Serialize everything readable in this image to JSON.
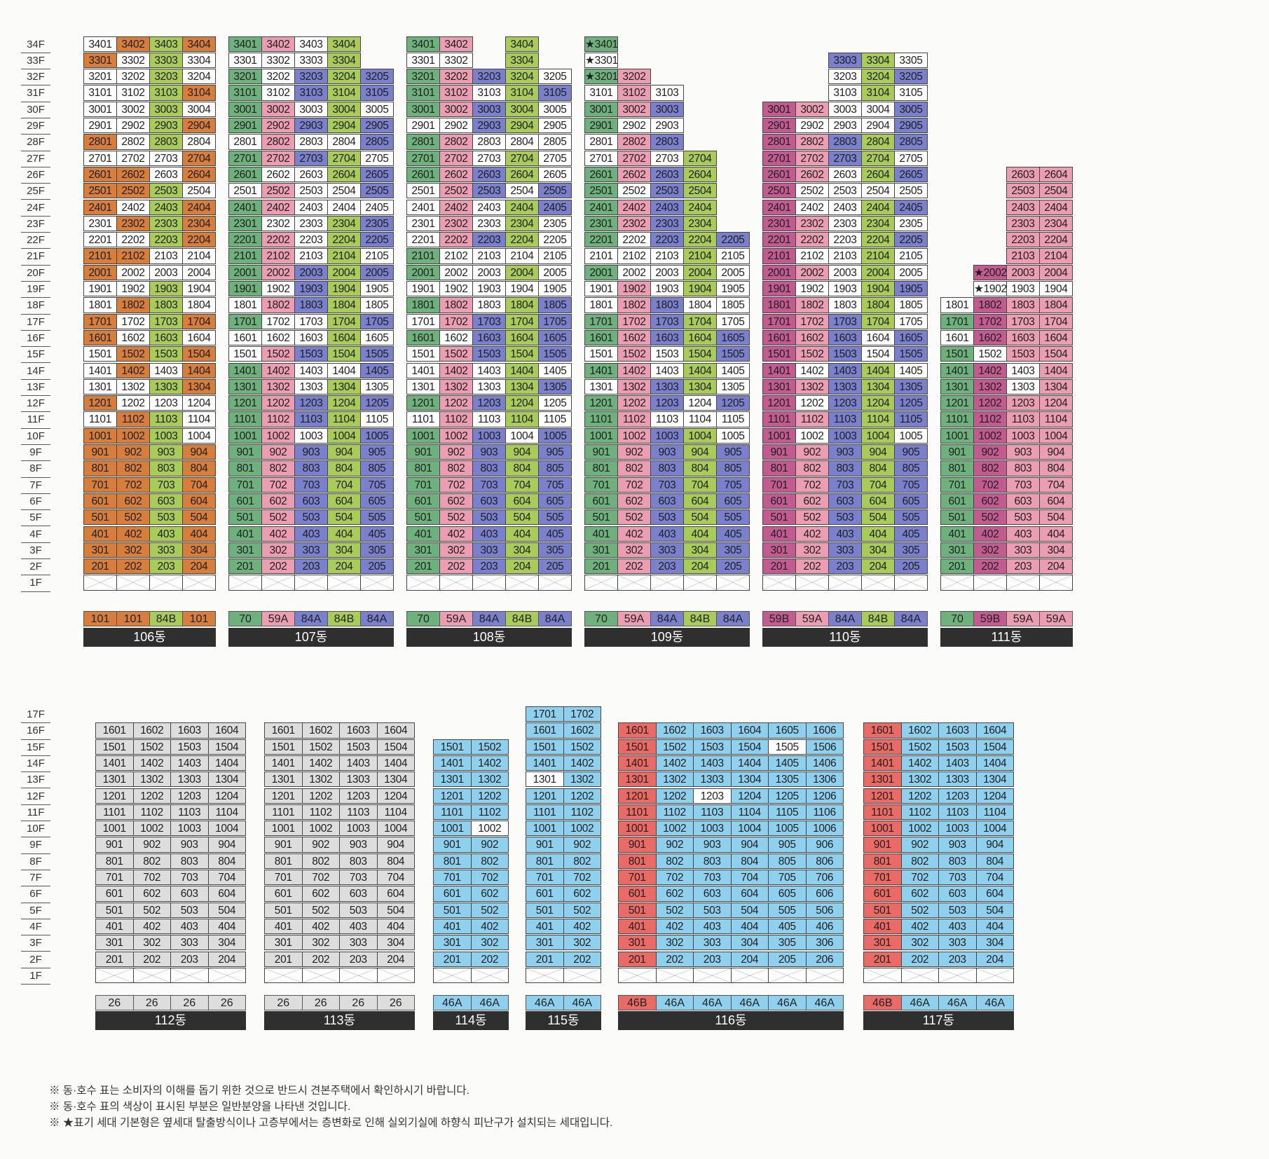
{
  "colors": {
    "orange": "#d77e3c",
    "green": "#6fb17d",
    "pink": "#eb9db1",
    "blue": "#7a80cc",
    "lime": "#a9cb5a",
    "magenta": "#c25c90",
    "white": "#ffffff",
    "gray": "#dddddd",
    "lightblue": "#8fd0ef",
    "red": "#ea6a66"
  },
  "top_floors": [
    "34F",
    "33F",
    "32F",
    "31F",
    "30F",
    "29F",
    "28F",
    "27F",
    "26F",
    "25F",
    "24F",
    "23F",
    "22F",
    "21F",
    "20F",
    "19F",
    "18F",
    "17F",
    "16F",
    "15F",
    "14F",
    "13F",
    "12F",
    "11F",
    "10F",
    "9F",
    "8F",
    "7F",
    "6F",
    "5F",
    "4F",
    "3F",
    "2F",
    "1F"
  ],
  "bottom_floors": [
    "17F",
    "16F",
    "15F",
    "14F",
    "13F",
    "12F",
    "11F",
    "10F",
    "9F",
    "8F",
    "7F",
    "6F",
    "5F",
    "4F",
    "3F",
    "2F",
    "1F"
  ],
  "top_buildings": [
    {
      "name": "106동",
      "types": [
        "101",
        "101",
        "84B",
        "101"
      ],
      "type_colors": [
        "O",
        "O",
        "L",
        "O"
      ],
      "rows": {
        "34": "WOLO",
        "33": "OWLW",
        "32": "WWLW",
        "31": "WWLO",
        "30": "WWLW",
        "29": "WWLO",
        "28": "OWLW",
        "27": "WWWO",
        "26": "OOWO",
        "25": "OOLW",
        "24": "OWLO",
        "23": "WOLO",
        "22": "WWLO",
        "21": "OOWW",
        "20": "OWWW",
        "19": "WWLW",
        "18": "WOLW",
        "17": "OWLO",
        "16": "OWLW",
        "15": "WOLO",
        "14": "WOWO",
        "13": "WWLO",
        "12": "OWWW",
        "11": "WOLW",
        "10": "OOLW",
        "9": "OOLO",
        "8": "OOLO",
        "7": "OOLO",
        "6": "OOLO",
        "5": "OOLO",
        "4": "OOLO",
        "3": "OOLO",
        "2": "OOLO"
      }
    },
    {
      "name": "107동",
      "types": [
        "70",
        "59A",
        "84A",
        "84B",
        "84A"
      ],
      "type_colors": [
        "G",
        "P",
        "B",
        "L",
        "B"
      ],
      "rows": {
        "34": "GPWL",
        "33": "WWWL",
        "32": "GWBLB",
        "31": "GWBLB",
        "30": "GPWLW",
        "29": "GPBLB",
        "28": "WPWWB",
        "27": "GPBLW",
        "26": "GWWLB",
        "25": "WPWWB",
        "24": "GPWWW",
        "23": "GWWLB",
        "22": "GPWLB",
        "21": "GPWLW",
        "20": "GPBLB",
        "19": "GWBLW",
        "18": "WPBLW",
        "17": "GWWLB",
        "16": "WWWLW",
        "15": "WPBLB",
        "14": "GPWWB",
        "13": "GPWLW",
        "12": "GPBLB",
        "11": "GPBLW",
        "10": "GPWLB",
        "9": "GPBLB",
        "8": "GPBLB",
        "7": "GPBLB",
        "6": "GPBLB",
        "5": "GPBLB",
        "4": "GPBLB",
        "3": "GPBLB",
        "2": "GPBLB"
      }
    },
    {
      "name": "108동",
      "types": [
        "70",
        "59A",
        "84A",
        "84B",
        "84A"
      ],
      "type_colors": [
        "G",
        "P",
        "B",
        "L",
        "B"
      ],
      "rows": {
        "34": "GP-L",
        "33": "WW-L",
        "32": "GPBLW",
        "31": "GPWLB",
        "30": "GPBLW",
        "29": "WWBLW",
        "28": "GPWWW",
        "27": "GPWLW",
        "26": "GPBLW",
        "25": "WPBWB",
        "24": "WPWLB",
        "23": "WPWLW",
        "22": "WPBLW",
        "21": "GWWWW",
        "20": "GWWLW",
        "19": "WWWWW",
        "18": "GPWLB",
        "17": "WPBLB",
        "16": "GWBLB",
        "15": "WPBLB",
        "14": "WPWLW",
        "13": "WPWLB",
        "12": "GPBLW",
        "11": "WPWLW",
        "10": "GPBWB",
        "9": "GPBLB",
        "8": "GPBLB",
        "7": "GPBLB",
        "6": "GPBLB",
        "5": "GPBLB",
        "4": "GPBLB",
        "3": "GPBLB",
        "2": "GPBLB"
      }
    },
    {
      "name": "109동",
      "types": [
        "70",
        "59A",
        "84A",
        "84B",
        "84A"
      ],
      "type_colors": [
        "G",
        "P",
        "B",
        "L",
        "B"
      ],
      "rows": {
        "34": "G",
        "33": "W",
        "32": "GP",
        "31": "WPW",
        "30": "GPB",
        "29": "GWW",
        "28": "WPB",
        "27": "WPWL",
        "26": "GPBL",
        "25": "GWBL",
        "24": "GPBL",
        "23": "GPBL",
        "22": "GWBLB",
        "21": "WWWLW",
        "20": "GWWLW",
        "19": "WPWLW",
        "18": "WPBWW",
        "17": "GPBLW",
        "16": "GPBLB",
        "15": "WPWLB",
        "14": "GPWLW",
        "13": "WPBLW",
        "12": "GPBWB",
        "11": "GPWWW",
        "10": "GPBLW",
        "9": "GPBLB",
        "8": "GPBLB",
        "7": "GPBLB",
        "6": "GPBLB",
        "5": "GPBLB",
        "4": "GPBLB",
        "3": "GPBLB",
        "2": "GPBLB"
      }
    },
    {
      "name": "110동",
      "types": [
        "59B",
        "59A",
        "84A",
        "84B",
        "84A"
      ],
      "type_colors": [
        "M",
        "P",
        "B",
        "L",
        "B"
      ],
      "rows": {
        "33": "--BLW",
        "32": "--WLB",
        "31": "--WLW",
        "30": "MPWWB",
        "29": "MWWWB",
        "28": "MPBLB",
        "27": "MPBLW",
        "26": "MPWLB",
        "25": "MWWWW",
        "24": "MWWLB",
        "23": "MPWLW",
        "22": "MPWLB",
        "21": "MWWLW",
        "20": "MPWLW",
        "19": "MWWLB",
        "18": "MPWLW",
        "17": "MPBLW",
        "16": "MPBWB",
        "15": "MPBWB",
        "14": "MWBLW",
        "13": "MPBLB",
        "12": "MWBLB",
        "11": "MPBLB",
        "10": "MWBLW",
        "9": "MPBLB",
        "8": "MPBLB",
        "7": "MPBLB",
        "6": "MPBLB",
        "5": "MPBLB",
        "4": "MPBLB",
        "3": "MPBLB",
        "2": "MPBLB"
      }
    },
    {
      "name": "111동",
      "types": [
        "70",
        "59B",
        "59A",
        "59A"
      ],
      "type_colors": [
        "G",
        "M",
        "P",
        "P"
      ],
      "rows": {
        "26": "--PP",
        "25": "--PP",
        "24": "--PP",
        "23": "--PP",
        "22": "--PP",
        "21": "--PP",
        "20": "-MPP",
        "19": "-WWW",
        "18": "WMPP",
        "17": "GMPP",
        "16": "WMPP",
        "15": "GWPP",
        "14": "GMWP",
        "13": "GMWP",
        "12": "GMPP",
        "11": "GMPP",
        "10": "GMPP",
        "9": "GMPP",
        "8": "GMPP",
        "7": "GMPP",
        "6": "GMPP",
        "5": "GMPP",
        "4": "GMPP",
        "3": "GMPP",
        "2": "GMPP"
      }
    }
  ],
  "bottom_buildings": [
    {
      "name": "112동",
      "types": [
        "26",
        "26",
        "26",
        "26"
      ],
      "type_colors": [
        "g",
        "g",
        "g",
        "g"
      ],
      "top": 16,
      "rows": {
        "all": "gggg"
      }
    },
    {
      "name": "113동",
      "types": [
        "26",
        "26",
        "26",
        "26"
      ],
      "type_colors": [
        "g",
        "g",
        "g",
        "g"
      ],
      "top": 16,
      "rows": {
        "all": "gggg"
      }
    },
    {
      "name": "114동",
      "types": [
        "46A",
        "46A"
      ],
      "type_colors": [
        "c",
        "c"
      ],
      "top": 15,
      "rows": {
        "all": "cc",
        "10": "cW"
      }
    },
    {
      "name": "115동",
      "types": [
        "46A",
        "46A"
      ],
      "type_colors": [
        "c",
        "c"
      ],
      "top": 17,
      "rows": {
        "all": "cc",
        "13": "Wc"
      }
    },
    {
      "name": "116동",
      "types": [
        "46B",
        "46A",
        "46A",
        "46A",
        "46A",
        "46A"
      ],
      "type_colors": [
        "R",
        "c",
        "c",
        "c",
        "c",
        "c"
      ],
      "top": 16,
      "rows": {
        "all": "Rccccc",
        "15": "RcccWc",
        "12": "RcWccc"
      }
    },
    {
      "name": "117동",
      "types": [
        "46B",
        "46A",
        "46A",
        "46A"
      ],
      "type_colors": [
        "R",
        "c",
        "c",
        "c"
      ],
      "top": 16,
      "rows": {
        "all": "Rccc"
      }
    }
  ],
  "notes": [
    "※ 동·호수 표는 소비자의 이해를 돕기 위한 것으로 반드시 견본주택에서 확인하시기 바랍니다.",
    "※ 동·호수 표의 색상이 표시된 부분은 일반분양을 나타낸 것입니다.",
    "※ ★표기 세대 기본형은 옆세대 탈출방식이나 고층부에서는 층변화로 인해 실외기실에 하향식 피난구가 설치되는 세대입니다."
  ],
  "star_units": [
    "109-34-1",
    "109-33-1",
    "109-32-1",
    "111-20-2",
    "111-19-2"
  ]
}
